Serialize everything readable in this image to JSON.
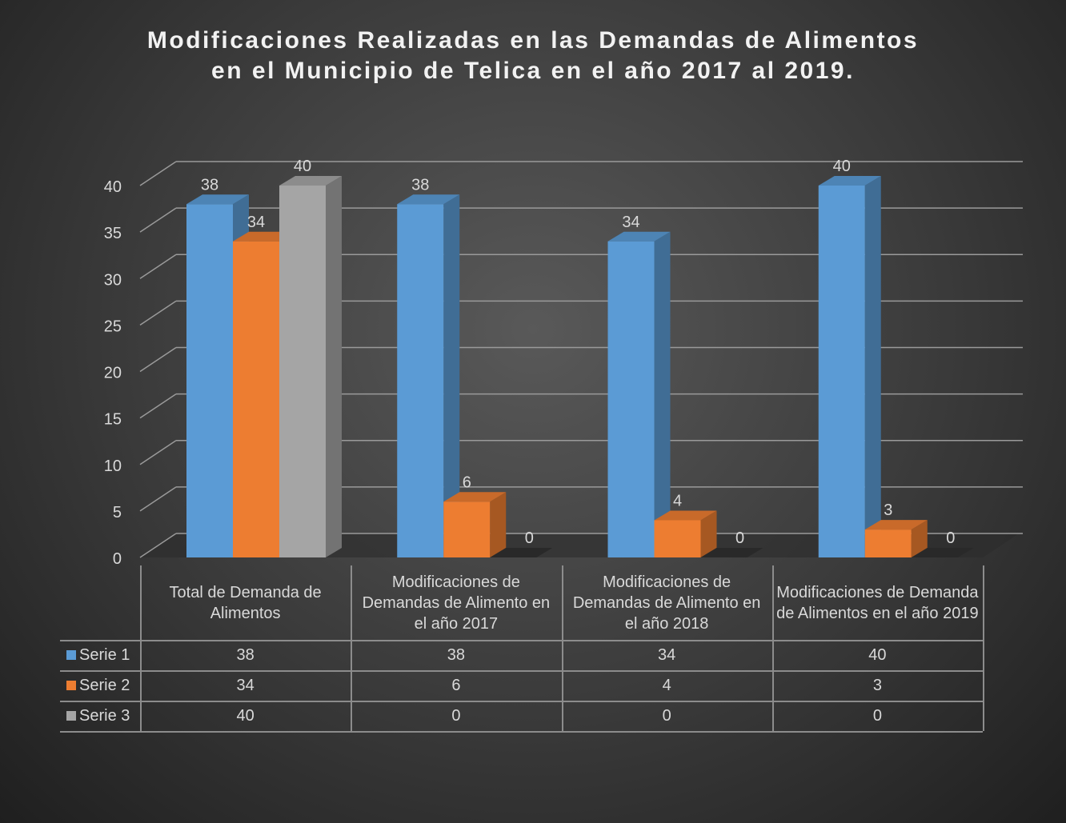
{
  "chart_data": {
    "type": "bar3d",
    "title": "Modificaciones Realizadas en las Demandas de Alimentos\nen el Municipio de Telica en el año 2017 al 2019.",
    "categories": [
      "Total de Demanda de Alimentos",
      "Modificaciones de Demandas de Alimento en el año 2017",
      "Modificaciones de Demandas de Alimento en el año 2018",
      "Modificaciones de Demanda de Alimentos en el año 2019"
    ],
    "series": [
      {
        "name": "Serie 1",
        "color": "#5b9bd5",
        "values": [
          38,
          38,
          34,
          40
        ]
      },
      {
        "name": "Serie 2",
        "color": "#ed7d31",
        "values": [
          34,
          6,
          4,
          3
        ]
      },
      {
        "name": "Serie 3",
        "color": "#a5a5a5",
        "values": [
          40,
          0,
          0,
          0
        ]
      }
    ],
    "ylim": [
      0,
      40
    ],
    "yticks": [
      0,
      5,
      10,
      15,
      20,
      25,
      30,
      35,
      40
    ],
    "grid": true,
    "data_table": true
  }
}
